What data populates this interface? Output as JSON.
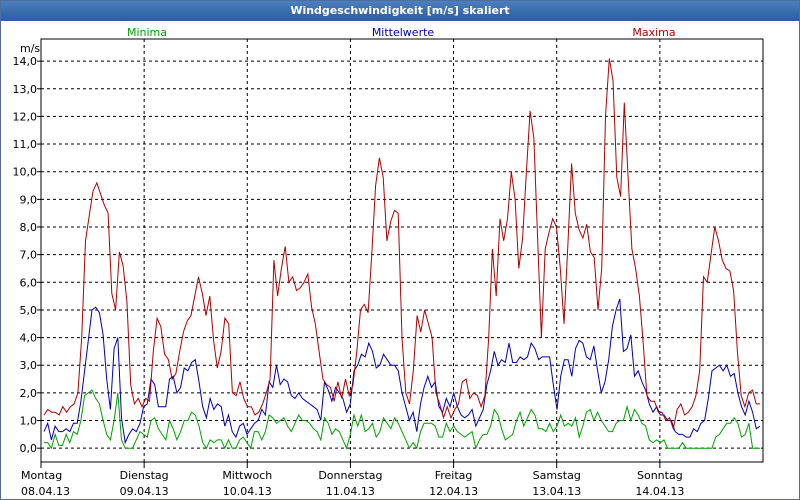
{
  "window": {
    "title": "Windgeschwindigkeit [m/s] skaliert"
  },
  "chart_data": {
    "type": "line",
    "title": "Windgeschwindigkeit [m/s] skaliert",
    "ylabel": "m/s",
    "ylim": [
      -0.5,
      14.8
    ],
    "yticks": [
      "14,0",
      "13,0",
      "12,0",
      "11,0",
      "10,0",
      "9,0",
      "8,0",
      "7,0",
      "6,0",
      "5,0",
      "4,0",
      "3,0",
      "2,0",
      "1,0",
      "0,0"
    ],
    "ytick_values": [
      14,
      13,
      12,
      11,
      10,
      9,
      8,
      7,
      6,
      5,
      4,
      3,
      2,
      1,
      0
    ],
    "days": [
      {
        "day": "Montag",
        "date": "08.04.13"
      },
      {
        "day": "Dienstag",
        "date": "09.04.13"
      },
      {
        "day": "Mittwoch",
        "date": "10.04.13"
      },
      {
        "day": "Donnerstag",
        "date": "11.04.13"
      },
      {
        "day": "Freitag",
        "date": "12.04.13"
      },
      {
        "day": "Samstag",
        "date": "13.04.13"
      },
      {
        "day": "Sonntag",
        "date": "14.04.13"
      }
    ],
    "grid": true,
    "legend_placement": "top",
    "series": [
      {
        "name": "Minima",
        "color": "#00a000",
        "values": [
          0.2,
          0.2,
          0.0,
          0.5,
          0.1,
          0.1,
          0.5,
          0.2,
          0.6,
          0.5,
          1.0,
          1.9,
          2.0,
          2.1,
          1.8,
          1.6,
          1.0,
          0.5,
          0.3,
          1.0,
          2.0,
          0.3,
          0.0,
          0.0,
          0.0,
          0.3,
          0.6,
          0.5,
          0.4,
          1.0,
          1.1,
          0.7,
          0.5,
          0.3,
          1.0,
          0.7,
          0.3,
          0.6,
          1.0,
          1.0,
          1.3,
          1.2,
          0.8,
          0.2,
          0.0,
          0.3,
          0.2,
          0.3,
          0.3,
          0.0,
          0.3,
          0.0,
          0.0,
          0.3,
          0.4,
          0.2,
          0.0,
          0.6,
          0.6,
          0.3,
          0.6,
          1.2,
          1.1,
          0.9,
          1.0,
          1.1,
          0.8,
          0.6,
          0.9,
          1.2,
          1.0,
          1.0,
          0.9,
          0.7,
          0.6,
          0.3,
          1.1,
          0.9,
          0.5,
          0.7,
          0.6,
          0.3,
          0.0,
          0.5,
          1.2,
          0.8,
          1.2,
          0.6,
          0.7,
          0.9,
          0.4,
          0.6,
          1.1,
          0.9,
          0.7,
          1.1,
          0.9,
          0.6,
          0.3,
          0.0,
          0.2,
          0.0,
          0.6,
          0.9,
          0.9,
          0.9,
          0.8,
          0.4,
          0.4,
          0.9,
          0.6,
          0.8,
          0.6,
          0.5,
          0.4,
          0.5,
          0.6,
          0.0,
          0.3,
          0.5,
          0.5,
          0.8,
          1.4,
          1.2,
          0.7,
          0.3,
          0.4,
          0.5,
          1.0,
          1.3,
          0.8,
          1.1,
          1.4,
          1.2,
          0.7,
          0.7,
          0.6,
          0.9,
          0.6,
          0.8,
          1.2,
          0.8,
          0.9,
          0.8,
          1.1,
          0.4,
          0.8,
          1.3,
          1.4,
          1.0,
          1.3,
          1.0,
          0.8,
          0.6,
          0.6,
          0.9,
          1.0,
          1.0,
          1.5,
          1.0,
          1.4,
          1.2,
          0.9,
          0.8,
          0.3,
          0.2,
          0.3,
          0.2,
          0.3,
          0.0,
          0.0,
          0.0,
          0.0,
          0.2,
          0.0,
          0.0,
          0.0,
          0.0,
          0.0,
          0.0,
          0.0,
          0.0,
          0.4,
          0.5,
          0.7,
          0.9,
          0.9,
          1.1,
          0.9,
          0.4,
          0.5,
          0.9,
          0.0,
          0.0,
          0.0
        ]
      },
      {
        "name": "Mittelwerte",
        "color": "#0000b0",
        "values": [
          0.6,
          0.9,
          0.3,
          0.8,
          0.6,
          0.6,
          0.7,
          0.6,
          0.9,
          0.9,
          1.7,
          2.8,
          3.9,
          5.0,
          5.1,
          4.9,
          4.1,
          2.5,
          1.4,
          3.6,
          4.0,
          1.1,
          0.2,
          0.5,
          0.7,
          0.6,
          0.9,
          1.5,
          1.6,
          2.5,
          2.3,
          1.5,
          1.5,
          1.5,
          2.5,
          2.6,
          2.0,
          2.2,
          2.9,
          2.8,
          3.1,
          3.2,
          2.4,
          1.5,
          1.1,
          1.8,
          1.4,
          1.6,
          1.5,
          0.8,
          1.2,
          0.6,
          0.4,
          0.8,
          0.9,
          0.5,
          0.7,
          0.9,
          1.0,
          1.4,
          1.2,
          2.4,
          2.2,
          3.0,
          2.3,
          2.5,
          2.4,
          1.9,
          1.8,
          2.0,
          1.8,
          1.7,
          1.6,
          1.5,
          1.4,
          1.0,
          2.4,
          2.1,
          1.7,
          2.2,
          2.0,
          1.8,
          1.3,
          1.6,
          2.8,
          3.0,
          3.4,
          3.3,
          3.8,
          3.5,
          2.9,
          3.0,
          3.4,
          3.2,
          3.0,
          3.0,
          2.8,
          2.0,
          1.5,
          1.0,
          1.3,
          0.6,
          1.6,
          2.2,
          2.6,
          2.2,
          2.4,
          1.5,
          1.3,
          1.8,
          1.5,
          2.0,
          1.5,
          1.2,
          1.1,
          1.2,
          1.4,
          0.8,
          1.1,
          1.4,
          2.3,
          2.8,
          3.5,
          3.0,
          3.2,
          3.1,
          3.8,
          3.1,
          3.1,
          3.3,
          3.2,
          3.3,
          3.8,
          3.6,
          3.2,
          3.3,
          3.3,
          3.3,
          2.3,
          1.4,
          2.6,
          3.2,
          3.2,
          2.6,
          3.6,
          3.9,
          3.8,
          3.3,
          3.2,
          3.7,
          2.8,
          2.0,
          2.4,
          3.2,
          4.4,
          5.0,
          5.4,
          3.5,
          3.6,
          4.1,
          2.6,
          2.8,
          2.4,
          2.1,
          1.6,
          1.3,
          1.5,
          1.2,
          1.2,
          1.0,
          1.0,
          0.6,
          0.5,
          0.5,
          0.4,
          0.4,
          0.7,
          0.6,
          0.9,
          1.0,
          1.8,
          2.8,
          2.9,
          3.0,
          2.8,
          3.0,
          2.6,
          2.7,
          2.0,
          1.5,
          1.2,
          1.7,
          1.3,
          0.7,
          0.8
        ]
      },
      {
        "name": "Maxima",
        "color": "#b00000",
        "values": [
          1.2,
          1.4,
          1.3,
          1.3,
          1.2,
          1.5,
          1.3,
          1.5,
          1.6,
          2.0,
          4.0,
          7.5,
          8.4,
          9.3,
          9.6,
          9.2,
          8.8,
          8.5,
          5.6,
          5.0,
          7.1,
          6.6,
          5.3,
          2.3,
          1.6,
          1.8,
          1.5,
          1.8,
          1.7,
          3.5,
          4.7,
          4.4,
          3.4,
          3.2,
          2.5,
          2.7,
          3.5,
          4.2,
          4.6,
          4.8,
          5.5,
          6.2,
          5.6,
          4.8,
          5.5,
          3.9,
          2.9,
          3.5,
          4.7,
          4.5,
          2.0,
          1.9,
          2.4,
          1.8,
          1.5,
          1.5,
          1.2,
          1.3,
          1.6,
          2.0,
          2.5,
          6.8,
          5.5,
          6.5,
          7.3,
          6.0,
          6.2,
          5.7,
          5.8,
          6.0,
          6.3,
          5.1,
          4.5,
          3.5,
          2.5,
          2.3,
          2.2,
          1.7,
          2.4,
          1.8,
          2.5,
          1.9,
          2.3,
          3.5,
          5.0,
          5.2,
          4.9,
          7.1,
          9.5,
          10.5,
          9.8,
          7.5,
          8.2,
          8.6,
          8.5,
          4.0,
          2.0,
          1.6,
          2.8,
          4.8,
          4.2,
          5.0,
          4.5,
          4.0,
          2.0,
          1.6,
          1.1,
          1.5,
          1.1,
          1.4,
          1.6,
          2.4,
          2.5,
          1.8,
          2.0,
          1.9,
          1.5,
          1.9,
          4.0,
          7.2,
          5.5,
          8.3,
          7.5,
          8.3,
          10.0,
          9.0,
          6.5,
          7.6,
          10.0,
          12.2,
          11.2,
          7.5,
          4.0,
          7.2,
          7.8,
          8.3,
          8.0,
          6.5,
          4.5,
          7.3,
          10.3,
          8.5,
          7.9,
          7.6,
          8.1,
          7.1,
          6.9,
          5.0,
          6.5,
          12.0,
          14.1,
          13.3,
          9.8,
          9.1,
          12.5,
          9.8,
          7.2,
          6.5,
          5.5,
          3.8,
          1.9,
          1.7,
          1.7,
          1.3,
          1.3,
          1.0,
          1.1,
          0.7,
          1.4,
          1.6,
          1.2,
          1.3,
          1.5,
          1.9,
          2.8,
          6.2,
          6.0,
          7.0,
          8.0,
          7.5,
          6.8,
          6.5,
          6.4,
          5.7,
          3.5,
          1.9,
          1.5,
          2.0,
          2.1,
          1.6,
          1.6
        ]
      }
    ]
  }
}
